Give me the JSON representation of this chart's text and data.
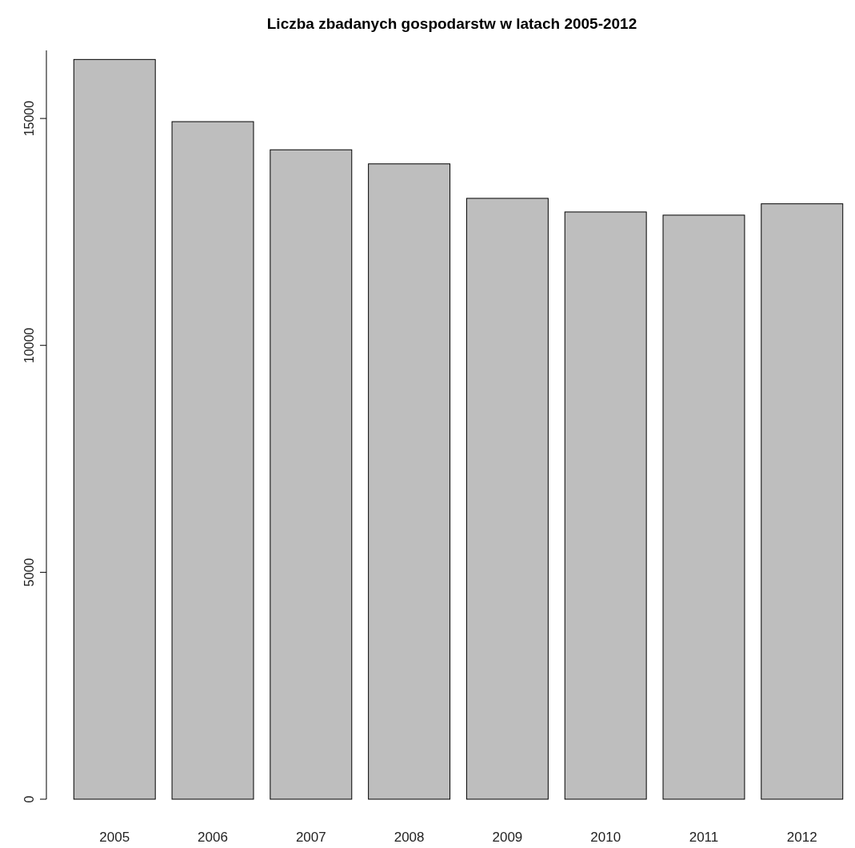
{
  "chart_data": {
    "type": "bar",
    "title": "Liczba zbadanych gospodarstw w latach 2005-2012",
    "categories": [
      "2005",
      "2006",
      "2007",
      "2008",
      "2009",
      "2010",
      "2011",
      "2012"
    ],
    "values": [
      16300,
      14930,
      14310,
      14000,
      13240,
      12940,
      12870,
      13120
    ],
    "color": "#bebebe",
    "ylim": [
      0,
      16500
    ],
    "yticks": [
      0,
      5000,
      10000,
      15000
    ],
    "grid": false
  }
}
